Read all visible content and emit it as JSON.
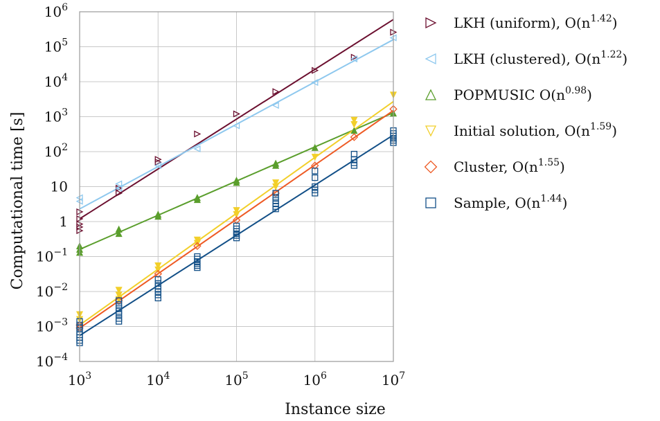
{
  "chart_data": {
    "type": "scatter",
    "title": "",
    "xlabel": "Instance size",
    "ylabel": "Computational time [s]",
    "x_scale": "log",
    "y_scale": "log",
    "xlim": [
      1000,
      10000000
    ],
    "ylim": [
      0.0001,
      1000000
    ],
    "grid": true,
    "legend_position": "right",
    "x_ticks": [
      {
        "value": 1000,
        "base": "10",
        "exp": "3"
      },
      {
        "value": 10000,
        "base": "10",
        "exp": "4"
      },
      {
        "value": 100000,
        "base": "10",
        "exp": "5"
      },
      {
        "value": 1000000,
        "base": "10",
        "exp": "6"
      },
      {
        "value": 10000000,
        "base": "10",
        "exp": "7"
      }
    ],
    "y_ticks": [
      {
        "value": 0.0001,
        "base": "10",
        "exp": "−4"
      },
      {
        "value": 0.001,
        "base": "10",
        "exp": "−3"
      },
      {
        "value": 0.01,
        "base": "10",
        "exp": "−2"
      },
      {
        "value": 0.1,
        "base": "10",
        "exp": "−1"
      },
      {
        "value": 1,
        "base": "1",
        "exp": ""
      },
      {
        "value": 10,
        "base": "10",
        "exp": ""
      },
      {
        "value": 100,
        "base": "10",
        "exp": "2"
      },
      {
        "value": 1000,
        "base": "10",
        "exp": "3"
      },
      {
        "value": 10000,
        "base": "10",
        "exp": "4"
      },
      {
        "value": 100000,
        "base": "10",
        "exp": "5"
      },
      {
        "value": 1000000,
        "base": "10",
        "exp": "6"
      }
    ],
    "series": [
      {
        "name": "LKH (uniform)",
        "legend_prefix": "LKH (uniform), O(n",
        "legend_exp": "1.42",
        "legend_suffix": ")",
        "color": "#6b0f2f",
        "marker": "triangle-right",
        "filled": false,
        "x": [
          1000,
          1000,
          1000,
          1000,
          1000,
          3162,
          3162,
          10000,
          10000,
          31623,
          100000,
          316228,
          1000000,
          3162278,
          10000000
        ],
        "y": [
          1.9,
          1.2,
          0.85,
          0.7,
          0.55,
          9,
          6.5,
          60,
          50,
          320,
          1200,
          5200,
          21000,
          50000,
          260000
        ],
        "fit": {
          "x": [
            1000,
            10000000
          ],
          "y": [
            1.2,
            600000
          ]
        }
      },
      {
        "name": "LKH (clustered)",
        "legend_prefix": "LKH (clustered), O(n",
        "legend_exp": "1.22",
        "legend_suffix": ")",
        "color": "#8ec8ee",
        "marker": "triangle-left",
        "filled": false,
        "x": [
          1000,
          1000,
          3162,
          3162,
          10000,
          31623,
          100000,
          316228,
          1000000,
          3162278,
          10000000
        ],
        "y": [
          4.8,
          3.8,
          12,
          9,
          40,
          120,
          550,
          2100,
          9500,
          45000,
          180000
        ],
        "fit": {
          "x": [
            1000,
            10000000
          ],
          "y": [
            2.3,
            160000
          ]
        }
      },
      {
        "name": "POPMUSIC",
        "legend_prefix": "POPMUSIC O(n",
        "legend_exp": "0.98",
        "legend_suffix": ")",
        "color": "#5a9e2c",
        "marker": "triangle-up",
        "filled": true,
        "x": [
          1000,
          1000,
          1000,
          3162,
          3162,
          10000,
          10000,
          31623,
          31623,
          100000,
          100000,
          316228,
          316228,
          1000000,
          3162278,
          10000000
        ],
        "y": [
          0.2,
          0.16,
          0.13,
          0.6,
          0.45,
          1.6,
          1.4,
          4.8,
          4.2,
          15,
          13,
          46,
          40,
          130,
          400,
          1250
        ],
        "fit": {
          "x": [
            1000,
            10000000
          ],
          "y": [
            0.16,
            1300
          ]
        }
      },
      {
        "name": "Initial solution",
        "legend_prefix": "Initial solution, O(n",
        "legend_exp": "1.59",
        "legend_suffix": ")",
        "color": "#f2cf2a",
        "marker": "triangle-down",
        "filled": true,
        "x": [
          1000,
          1000,
          3162,
          3162,
          3162,
          10000,
          10000,
          31623,
          31623,
          100000,
          100000,
          316228,
          316228,
          1000000,
          3162278,
          3162278,
          10000000
        ],
        "y": [
          0.0022,
          0.0016,
          0.011,
          0.008,
          0.006,
          0.055,
          0.042,
          0.3,
          0.24,
          2.1,
          1.6,
          13,
          10,
          70,
          800,
          600,
          4200
        ],
        "fit": {
          "x": [
            1000,
            10000000
          ],
          "y": [
            0.0011,
            2700
          ]
        }
      },
      {
        "name": "Cluster",
        "legend_prefix": "Cluster, O(n",
        "legend_exp": "1.55",
        "legend_suffix": ")",
        "color": "#ee5a24",
        "marker": "diamond",
        "filled": false,
        "x": [
          1000,
          1000,
          3162,
          10000,
          31623,
          100000,
          316228,
          1000000,
          3162278,
          10000000
        ],
        "y": [
          0.0011,
          0.0009,
          0.0055,
          0.032,
          0.2,
          1.1,
          6.5,
          40,
          260,
          1650
        ],
        "fit": {
          "x": [
            1000,
            10000000
          ],
          "y": [
            0.0009,
            1500
          ]
        }
      },
      {
        "name": "Sample",
        "legend_prefix": "Sample, O(n",
        "legend_exp": "1.44",
        "legend_suffix": ")",
        "color": "#124f87",
        "marker": "square",
        "filled": false,
        "x": [
          1000,
          1000,
          1000,
          1000,
          1000,
          1000,
          1000,
          1000,
          3162,
          3162,
          3162,
          3162,
          3162,
          3162,
          3162,
          10000,
          10000,
          10000,
          10000,
          10000,
          10000,
          10000,
          31623,
          31623,
          31623,
          31623,
          31623,
          31623,
          100000,
          100000,
          100000,
          100000,
          100000,
          100000,
          316228,
          316228,
          316228,
          316228,
          316228,
          316228,
          1000000,
          1000000,
          1000000,
          1000000,
          1000000,
          3162278,
          3162278,
          3162278,
          3162278,
          10000000,
          10000000,
          10000000,
          10000000,
          10000000,
          10000000
        ],
        "y": [
          0.0014,
          0.0011,
          0.0009,
          0.0007,
          0.00058,
          0.00048,
          0.0004,
          0.00034,
          0.0055,
          0.0043,
          0.0034,
          0.0027,
          0.0022,
          0.0017,
          0.0014,
          0.022,
          0.017,
          0.014,
          0.012,
          0.01,
          0.008,
          0.0065,
          0.1,
          0.085,
          0.072,
          0.062,
          0.055,
          0.048,
          0.75,
          0.62,
          0.52,
          0.45,
          0.4,
          0.34,
          6.5,
          5,
          4,
          3.2,
          2.7,
          2.3,
          28,
          18,
          10,
          8,
          6.5,
          85,
          60,
          48,
          40,
          400,
          330,
          280,
          240,
          210,
          180
        ],
        "fit": {
          "x": [
            1000,
            10000000
          ],
          "y": [
            0.00055,
            300
          ]
        }
      }
    ]
  }
}
